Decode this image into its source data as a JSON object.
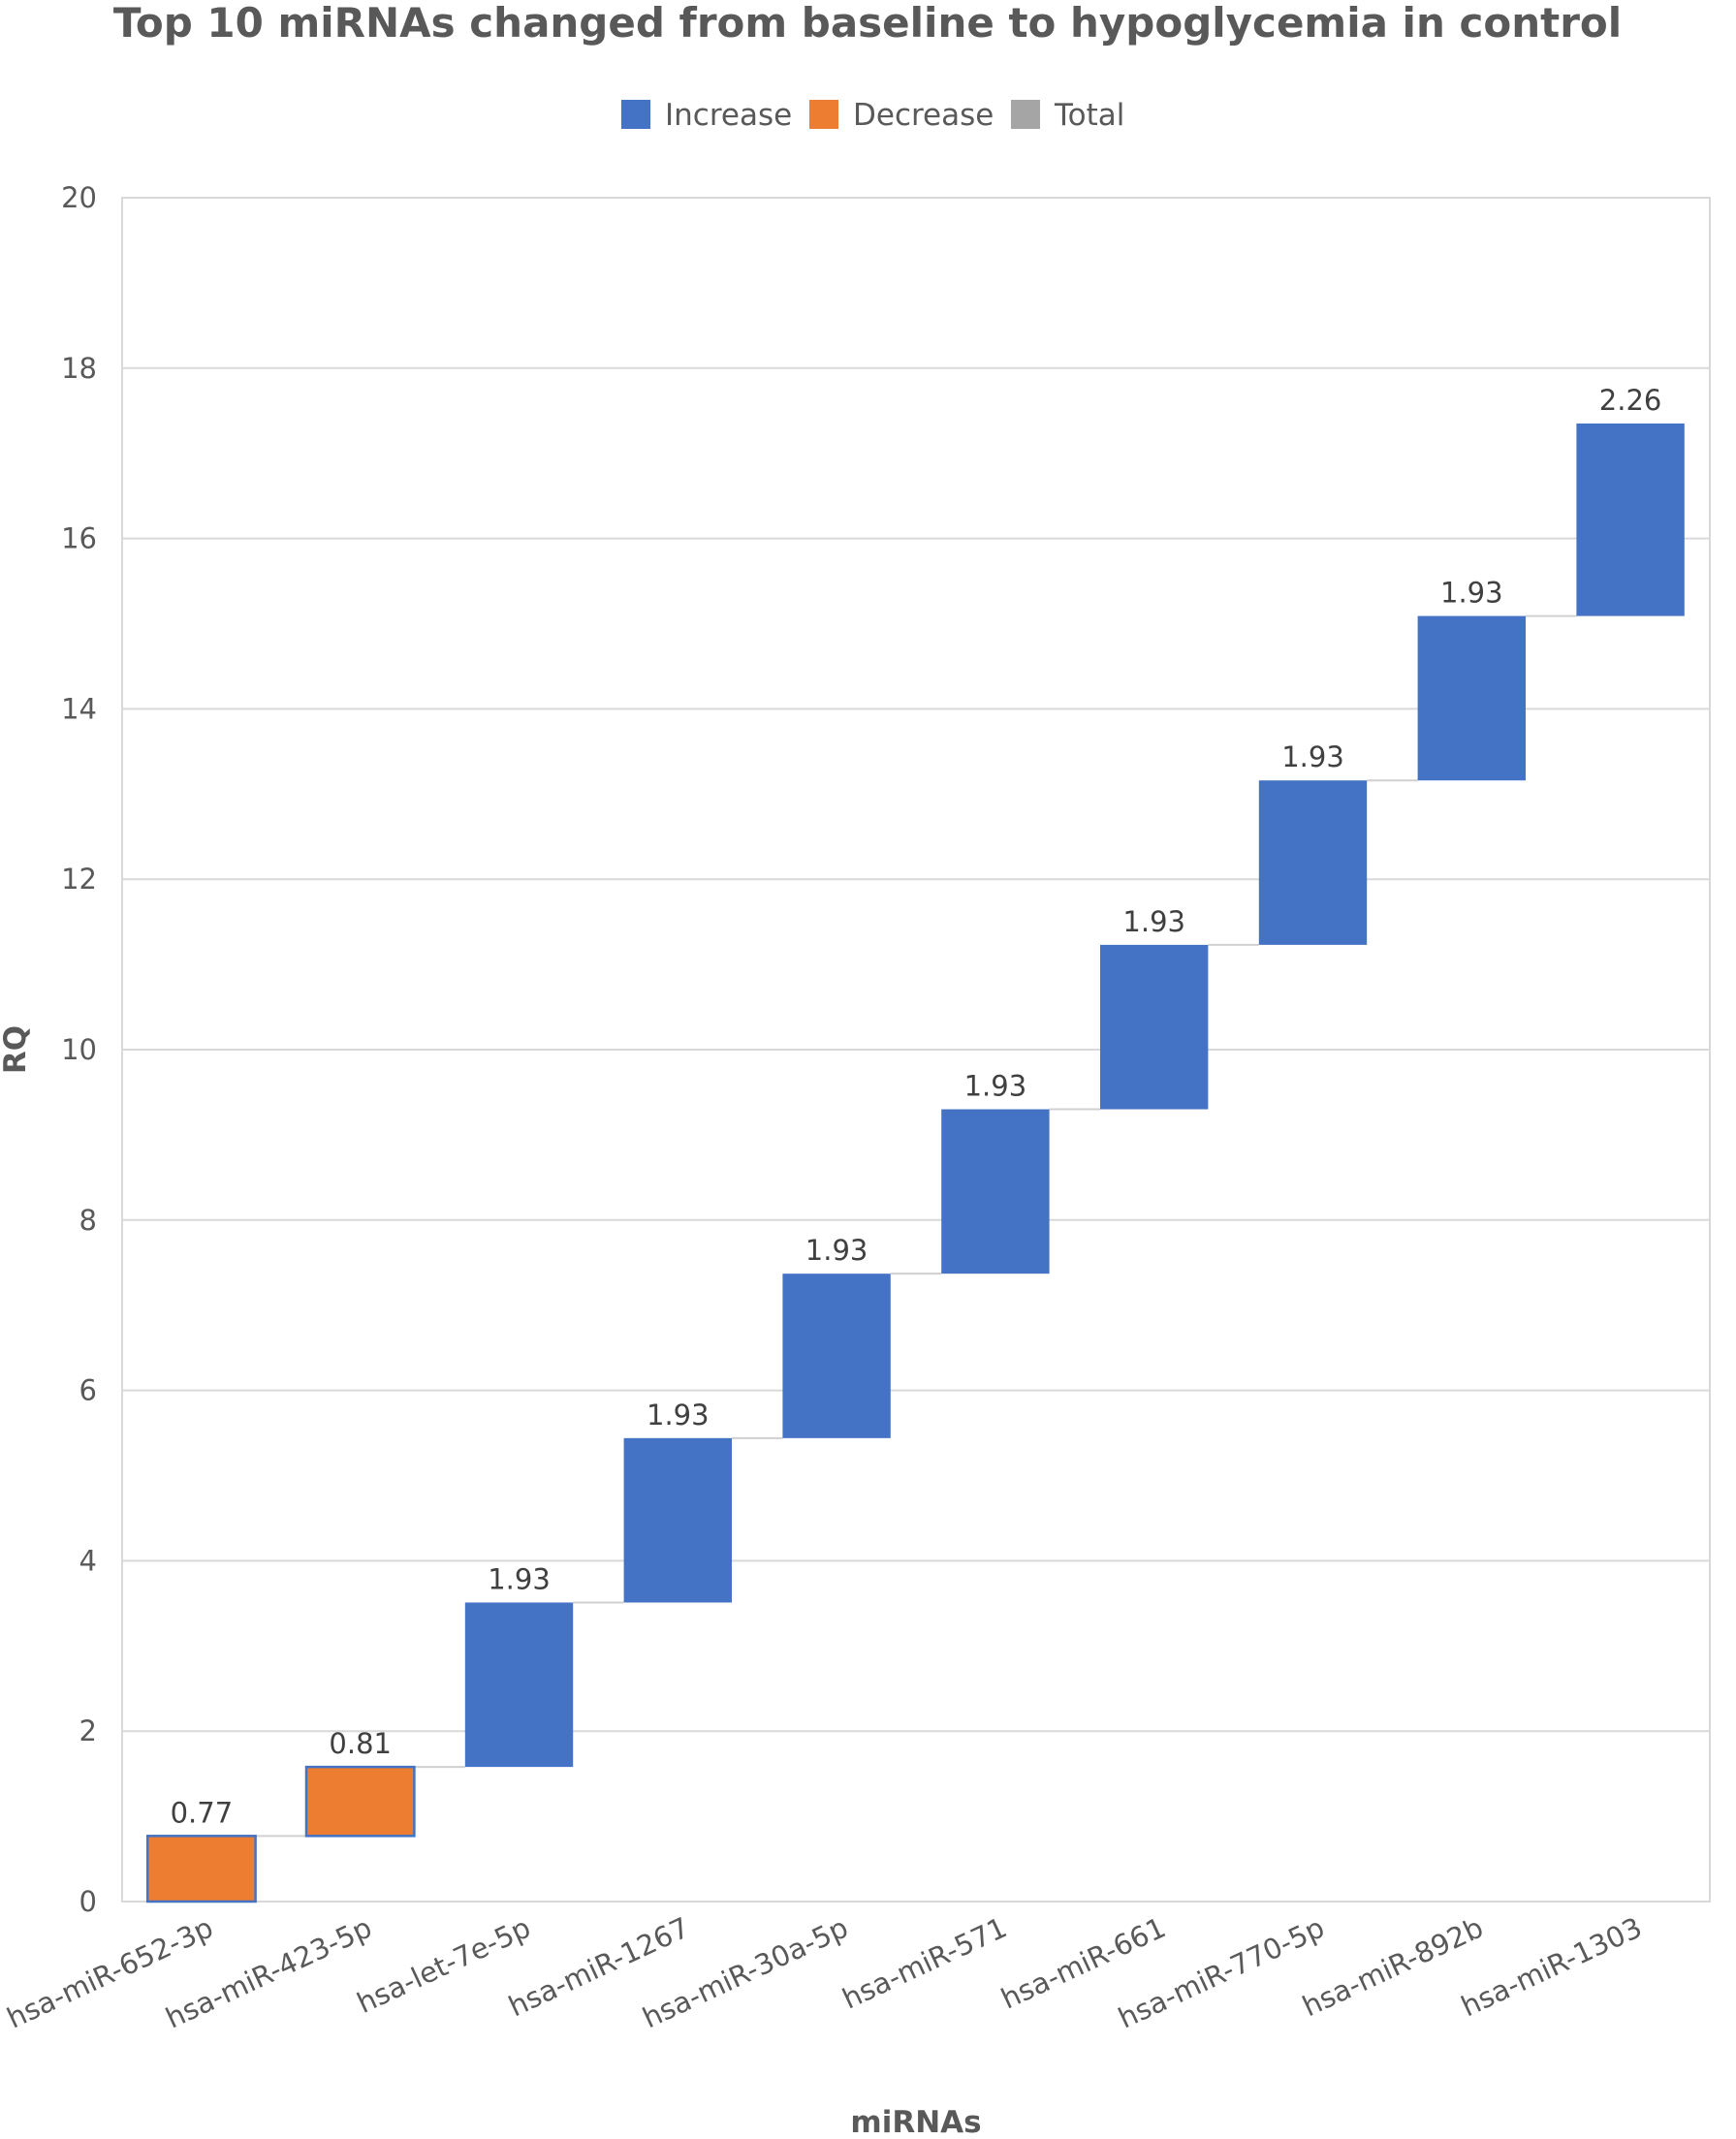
{
  "colors": {
    "increase": "#4472c4",
    "decrease": "#ed7d31",
    "total": "#a5a5a5",
    "decrease_border": "#4472c4"
  },
  "chart_data": {
    "type": "bar",
    "subtype": "waterfall",
    "title": "Top 10 miRNAs changed from baseline to hypoglycemia in control",
    "xlabel": "miRNAs",
    "ylabel": "RQ",
    "ylim": [
      0,
      20
    ],
    "yticks": [
      "0",
      "2",
      "4",
      "6",
      "8",
      "10",
      "12",
      "14",
      "16",
      "18",
      "20"
    ],
    "grid": true,
    "legend_position": "top",
    "legend": [
      {
        "name": "Increase",
        "color": "#4472c4"
      },
      {
        "name": "Decrease",
        "color": "#ed7d31"
      },
      {
        "name": "Total",
        "color": "#a5a5a5"
      }
    ],
    "categories": [
      "hsa-miR-652-3p",
      "hsa-miR-423-5p",
      "hsa-let-7e-5p",
      "hsa-miR-1267",
      "hsa-miR-30a-5p",
      "hsa-miR-571",
      "hsa-miR-661",
      "hsa-miR-770-5p",
      "hsa-miR-892b",
      "hsa-miR-1303"
    ],
    "values": [
      0.77,
      0.81,
      1.93,
      1.93,
      1.93,
      1.93,
      1.93,
      1.93,
      1.93,
      2.26
    ],
    "data_labels": [
      "0.77",
      "0.81",
      "1.93",
      "1.93",
      "1.93",
      "1.93",
      "1.93",
      "1.93",
      "1.93",
      "2.26"
    ],
    "kinds": [
      "decrease",
      "decrease",
      "increase",
      "increase",
      "increase",
      "increase",
      "increase",
      "increase",
      "increase",
      "increase"
    ]
  }
}
